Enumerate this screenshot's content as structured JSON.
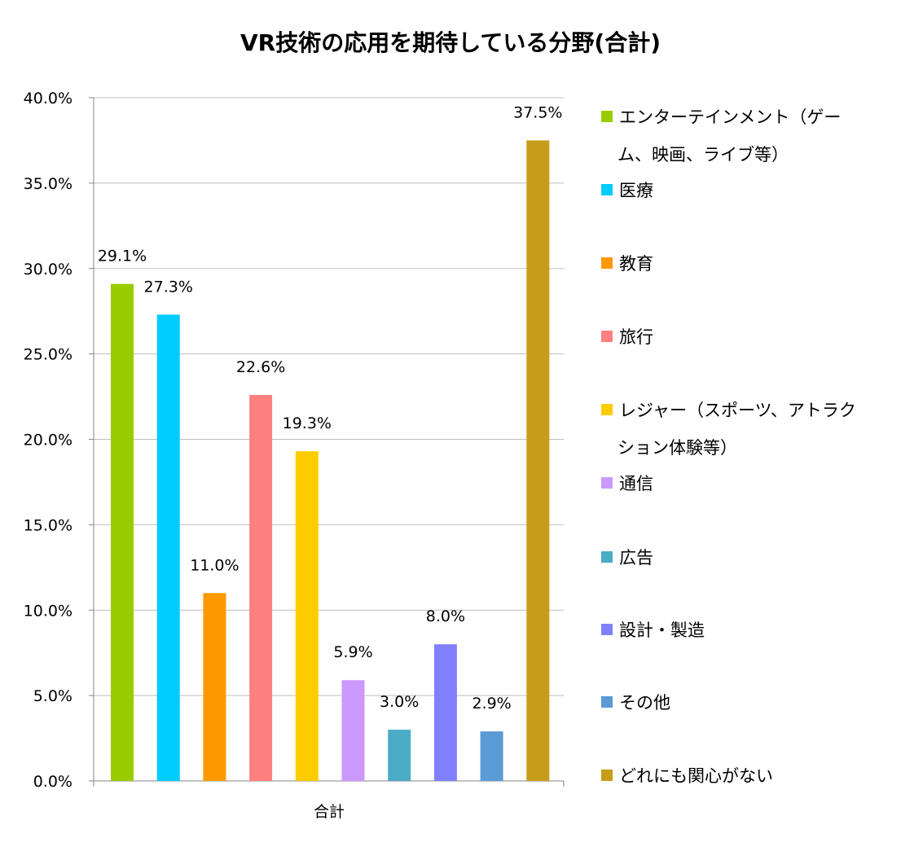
{
  "chart_data": {
    "type": "bar",
    "title": "VR技術の応用を期待している分野(合計)",
    "xlabel": "",
    "ylabel": "",
    "category_label": "合計",
    "ylim": [
      0,
      40
    ],
    "yticks": [
      "0.0%",
      "5.0%",
      "10.0%",
      "15.0%",
      "20.0%",
      "25.0%",
      "30.0%",
      "35.0%",
      "40.0%"
    ],
    "grid": true,
    "legend_position": "right",
    "series": [
      {
        "name": "エンターテインメント（ゲーム、映画、ライブ等）",
        "value": 29.1,
        "label": "29.1%",
        "color": "#99cc00"
      },
      {
        "name": "医療",
        "value": 27.3,
        "label": "27.3%",
        "color": "#00ccff"
      },
      {
        "name": "教育",
        "value": 11.0,
        "label": "11.0%",
        "color": "#ff9900"
      },
      {
        "name": "旅行",
        "value": 22.6,
        "label": "22.6%",
        "color": "#ff8080"
      },
      {
        "name": "レジャー（スポーツ、アトラクション体験等）",
        "value": 19.3,
        "label": "19.3%",
        "color": "#ffcc00"
      },
      {
        "name": "通信",
        "value": 5.9,
        "label": "5.9%",
        "color": "#cc99ff"
      },
      {
        "name": "広告",
        "value": 3.0,
        "label": "3.0%",
        "color": "#4bacc6"
      },
      {
        "name": "設計・製造",
        "value": 8.0,
        "label": "8.0%",
        "color": "#8080ff"
      },
      {
        "name": "その他",
        "value": 2.9,
        "label": "2.9%",
        "color": "#5b9bd5"
      },
      {
        "name": "どれにも関心がない",
        "value": 37.5,
        "label": "37.5%",
        "color": "#c69c1a"
      }
    ],
    "legend_lines": [
      [
        "エンターテインメント（ゲー",
        "ム、映画、ライブ等）"
      ],
      [
        "医療"
      ],
      [
        "教育"
      ],
      [
        "旅行"
      ],
      [
        "レジャー（スポーツ、アトラク",
        "ション体験等）"
      ],
      [
        "通信"
      ],
      [
        "広告"
      ],
      [
        "設計・製造"
      ],
      [
        "その他"
      ],
      [
        "どれにも関心がない"
      ]
    ]
  }
}
